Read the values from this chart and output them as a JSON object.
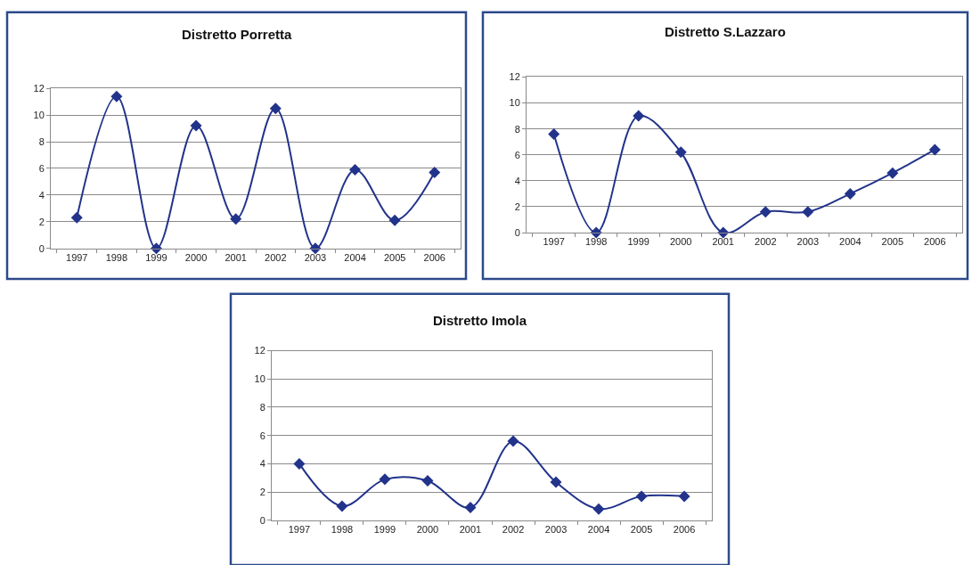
{
  "chart_data": [
    {
      "type": "line",
      "title": "Distretto Porretta",
      "categories": [
        "1997",
        "1998",
        "1999",
        "2000",
        "2001",
        "2002",
        "2003",
        "2004",
        "2005",
        "2006"
      ],
      "series": [
        {
          "color": "#22338b",
          "values": [
            2.3,
            11.4,
            0,
            9.2,
            2.2,
            10.5,
            0,
            5.9,
            2.1,
            5.7
          ]
        }
      ],
      "ylim": [
        0,
        12
      ],
      "yticks": [
        0,
        2,
        4,
        6,
        8,
        10,
        12
      ],
      "grid": "y",
      "marker": "diamond"
    },
    {
      "type": "line",
      "title": "Distretto S.Lazzaro",
      "categories": [
        "1997",
        "1998",
        "1999",
        "2000",
        "2001",
        "2002",
        "2003",
        "2004",
        "2005",
        "2006"
      ],
      "series": [
        {
          "color": "#22338b",
          "values": [
            7.6,
            0,
            9.0,
            6.2,
            0,
            1.6,
            1.6,
            3.0,
            4.6,
            6.4
          ]
        }
      ],
      "ylim": [
        0,
        12
      ],
      "yticks": [
        0,
        2,
        4,
        6,
        8,
        10,
        12
      ],
      "grid": "y",
      "marker": "diamond"
    },
    {
      "type": "line",
      "title": "Distretto Imola",
      "categories": [
        "1997",
        "1998",
        "1999",
        "2000",
        "2001",
        "2002",
        "2003",
        "2004",
        "2005",
        "2006"
      ],
      "series": [
        {
          "color": "#22338b",
          "values": [
            4.0,
            1.0,
            2.9,
            2.8,
            0.9,
            5.6,
            2.7,
            0.8,
            1.7,
            1.7
          ]
        }
      ],
      "ylim": [
        0,
        12
      ],
      "yticks": [
        0,
        2,
        4,
        6,
        8,
        10,
        12
      ],
      "grid": "y",
      "marker": "diamond"
    }
  ]
}
